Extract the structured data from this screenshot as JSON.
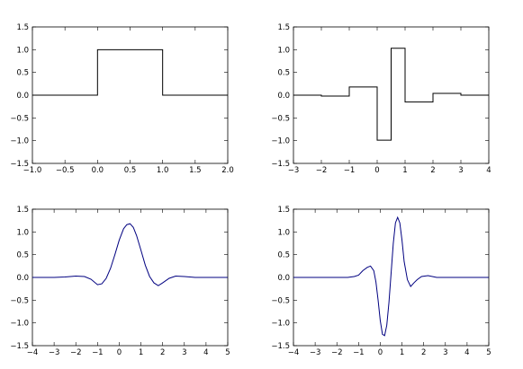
{
  "chart_data": [
    {
      "type": "line",
      "title": "",
      "xlabel": "",
      "ylabel": "",
      "xlim": [
        -1.0,
        2.0
      ],
      "ylim": [
        -1.5,
        1.5
      ],
      "x_ticks": [
        "−1.0",
        "−0.5",
        "0.0",
        "0.5",
        "1.0",
        "1.5",
        "2.0"
      ],
      "x_tick_values": [
        -1.0,
        -0.5,
        0.0,
        0.5,
        1.0,
        1.5,
        2.0
      ],
      "y_ticks": [
        "1.5",
        "1.0",
        "0.5",
        "0.0",
        "−0.5",
        "−1.0",
        "−1.5"
      ],
      "y_tick_values": [
        1.5,
        1.0,
        0.5,
        0.0,
        -0.5,
        -1.0,
        -1.5
      ],
      "grid": false,
      "series": [
        {
          "color": "#000000",
          "step": true,
          "x": [
            -1.0,
            0.0,
            0.0,
            1.0,
            1.0,
            2.0
          ],
          "y": [
            0.0,
            0.0,
            1.0,
            1.0,
            0.0,
            0.0
          ]
        }
      ]
    },
    {
      "type": "line",
      "title": "",
      "xlabel": "",
      "ylabel": "",
      "xlim": [
        -3,
        4
      ],
      "ylim": [
        -1.5,
        1.5
      ],
      "x_ticks": [
        "−3",
        "−2",
        "−1",
        "0",
        "1",
        "2",
        "3",
        "4"
      ],
      "x_tick_values": [
        -3,
        -2,
        -1,
        0,
        1,
        2,
        3,
        4
      ],
      "y_ticks": [
        "1.5",
        "1.0",
        "0.5",
        "0.0",
        "−0.5",
        "−1.0",
        "−1.5"
      ],
      "y_tick_values": [
        1.5,
        1.0,
        0.5,
        0.0,
        -0.5,
        -1.0,
        -1.5
      ],
      "grid": false,
      "series": [
        {
          "color": "#000000",
          "step": true,
          "x": [
            -3,
            -2,
            -2,
            -1,
            -1,
            0,
            0,
            0.5,
            0.5,
            1,
            1,
            2,
            2,
            3,
            3,
            4
          ],
          "y": [
            0.0,
            0.0,
            -0.02,
            -0.02,
            0.18,
            0.18,
            -0.99,
            -0.99,
            1.03,
            1.03,
            -0.15,
            -0.15,
            0.04,
            0.04,
            0.0,
            0.0
          ]
        }
      ]
    },
    {
      "type": "line",
      "title": "",
      "xlabel": "",
      "ylabel": "",
      "xlim": [
        -4,
        5
      ],
      "ylim": [
        -1.5,
        1.5
      ],
      "x_ticks": [
        "−4",
        "−3",
        "−2",
        "−1",
        "0",
        "1",
        "2",
        "3",
        "4",
        "5"
      ],
      "x_tick_values": [
        -4,
        -3,
        -2,
        -1,
        0,
        1,
        2,
        3,
        4,
        5
      ],
      "y_ticks": [
        "1.5",
        "1.0",
        "0.5",
        "0.0",
        "−0.5",
        "−1.0",
        "−1.5"
      ],
      "y_tick_values": [
        1.5,
        1.0,
        0.5,
        0.0,
        -0.5,
        -1.0,
        -1.5
      ],
      "grid": false,
      "series": [
        {
          "color": "#000080",
          "step": false,
          "x": [
            -4,
            -3,
            -2.5,
            -2,
            -1.6,
            -1.3,
            -1,
            -0.8,
            -0.6,
            -0.4,
            -0.2,
            0,
            0.2,
            0.35,
            0.5,
            0.65,
            0.8,
            1,
            1.2,
            1.4,
            1.6,
            1.8,
            2,
            2.3,
            2.6,
            3,
            3.5,
            4,
            5
          ],
          "y": [
            0.0,
            0.0,
            0.01,
            0.03,
            0.02,
            -0.04,
            -0.16,
            -0.14,
            -0.02,
            0.2,
            0.5,
            0.82,
            1.07,
            1.16,
            1.18,
            1.1,
            0.92,
            0.6,
            0.27,
            0.02,
            -0.12,
            -0.18,
            -0.12,
            -0.02,
            0.03,
            0.02,
            0.0,
            0.0,
            0.0
          ]
        }
      ]
    },
    {
      "type": "line",
      "title": "",
      "xlabel": "",
      "ylabel": "",
      "xlim": [
        -4,
        5
      ],
      "ylim": [
        -1.5,
        1.5
      ],
      "x_ticks": [
        "−4",
        "−3",
        "−2",
        "−1",
        "0",
        "1",
        "2",
        "3",
        "4",
        "5"
      ],
      "x_tick_values": [
        -4,
        -3,
        -2,
        -1,
        0,
        1,
        2,
        3,
        4,
        5
      ],
      "y_ticks": [
        "1.5",
        "1.0",
        "0.5",
        "0.0",
        "−0.5",
        "−1.0",
        "−1.5"
      ],
      "y_tick_values": [
        1.5,
        1.0,
        0.5,
        0.0,
        -0.5,
        -1.0,
        -1.5
      ],
      "grid": false,
      "series": [
        {
          "color": "#000080",
          "step": false,
          "x": [
            -4,
            -2,
            -1.5,
            -1.2,
            -1,
            -0.8,
            -0.6,
            -0.45,
            -0.3,
            -0.2,
            -0.1,
            0,
            0.1,
            0.2,
            0.3,
            0.4,
            0.5,
            0.6,
            0.7,
            0.8,
            0.9,
            1,
            1.1,
            1.25,
            1.4,
            1.55,
            1.7,
            1.9,
            2.2,
            2.6,
            3,
            4,
            5
          ],
          "y": [
            0.0,
            0.0,
            0.0,
            0.02,
            0.05,
            0.15,
            0.22,
            0.25,
            0.15,
            -0.1,
            -0.5,
            -0.95,
            -1.25,
            -1.28,
            -1.05,
            -0.55,
            0.1,
            0.75,
            1.2,
            1.32,
            1.2,
            0.82,
            0.35,
            -0.05,
            -0.2,
            -0.12,
            -0.05,
            0.02,
            0.04,
            0.0,
            0.0,
            0.0,
            0.0
          ]
        }
      ]
    }
  ]
}
